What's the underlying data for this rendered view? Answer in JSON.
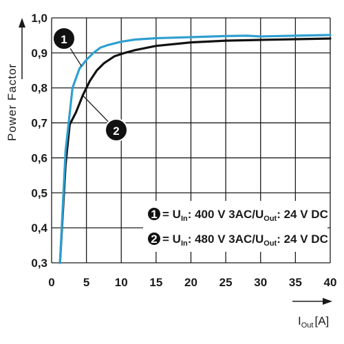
{
  "chart_data": {
    "type": "line",
    "ylabel": "Power Factor",
    "xlabel_main": "I",
    "xlabel_sub": "Out",
    "xlabel_unit": "[A]",
    "xlim": [
      0,
      40
    ],
    "ylim": [
      0.3,
      1.0
    ],
    "x_ticks": [
      "0",
      "5",
      "10",
      "15",
      "20",
      "25",
      "30",
      "35",
      "40"
    ],
    "y_ticks": [
      "0,3",
      "0,4",
      "0,5",
      "0,6",
      "0,7",
      "0,8",
      "0,9",
      "1,0"
    ],
    "grid": true,
    "series": [
      {
        "name": "1",
        "color": "#2e9fd0",
        "x": [
          1.2,
          2.0,
          3.0,
          4.0,
          5.0,
          6.0,
          7.0,
          8.0,
          10.0,
          12.0,
          15.0,
          20.0,
          25.0,
          28.0,
          30.0,
          35.0,
          40.0
        ],
        "y": [
          0.3,
          0.62,
          0.8,
          0.855,
          0.88,
          0.9,
          0.915,
          0.922,
          0.932,
          0.938,
          0.942,
          0.945,
          0.948,
          0.949,
          0.947,
          0.949,
          0.951
        ]
      },
      {
        "name": "2",
        "color": "#111111",
        "x": [
          1.2,
          2.0,
          2.6,
          3.5,
          4.5,
          5.5,
          6.5,
          7.5,
          9.0,
          10.5,
          12.0,
          15.0,
          20.0,
          25.0,
          30.0,
          35.0,
          40.0
        ],
        "y": [
          0.3,
          0.58,
          0.695,
          0.73,
          0.78,
          0.82,
          0.85,
          0.87,
          0.89,
          0.9,
          0.908,
          0.92,
          0.93,
          0.935,
          0.937,
          0.939,
          0.941
        ]
      }
    ],
    "markers": [
      {
        "label": "1",
        "series": "1"
      },
      {
        "label": "2",
        "series": "2"
      }
    ],
    "legend": {
      "placement": "bottom-right",
      "entries": [
        {
          "num": "1",
          "eq": "= U",
          "sub1": "In",
          "mid": ": 400 V 3AC/U",
          "sub2": "Out",
          "tail": ": 24 V DC"
        },
        {
          "num": "2",
          "eq": "= U",
          "sub1": "In",
          "mid": ": 480 V 3AC/U",
          "sub2": "Out",
          "tail": ": 24 V DC"
        }
      ]
    }
  }
}
